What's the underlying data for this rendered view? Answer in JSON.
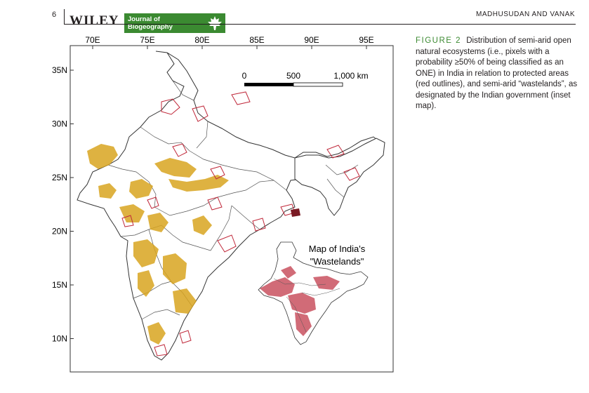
{
  "header": {
    "page_number": "6",
    "publisher": "WILEY",
    "journal_line1": "Journal of",
    "journal_line2": "Biogeography",
    "authors": "MADHUSUDAN AND VANAK"
  },
  "caption": {
    "label": "FIGURE 2",
    "text": "Distribution of semi-arid open natural ecosystems (i.e., pixels with a probability ≥50% of being classified as an ONE) in India in relation to protected areas (red outlines), and semi-arid “wastelands”, as designated by the Indian government (inset map)."
  },
  "map": {
    "lon_ticks": [
      {
        "value": 70,
        "label": "70E"
      },
      {
        "value": 75,
        "label": "75E"
      },
      {
        "value": 80,
        "label": "80E"
      },
      {
        "value": 85,
        "label": "85E"
      },
      {
        "value": 90,
        "label": "90E"
      },
      {
        "value": 95,
        "label": "95E"
      }
    ],
    "lat_ticks": [
      {
        "value": 35,
        "label": "35N"
      },
      {
        "value": 30,
        "label": "30N"
      },
      {
        "value": 25,
        "label": "25N"
      },
      {
        "value": 20,
        "label": "20N"
      },
      {
        "value": 15,
        "label": "15N"
      },
      {
        "value": 10,
        "label": "10N"
      }
    ],
    "scale_bar": {
      "labels": [
        "0",
        "500",
        "1,000 km"
      ]
    },
    "inset_title_line1": "Map of India's",
    "inset_title_line2": "\"Wastelands\"",
    "colors": {
      "one_fill": "#d9a520",
      "protected_area_outline": "#c0283a",
      "wasteland_fill": "#c23a4a",
      "boundary": "#333333"
    }
  }
}
